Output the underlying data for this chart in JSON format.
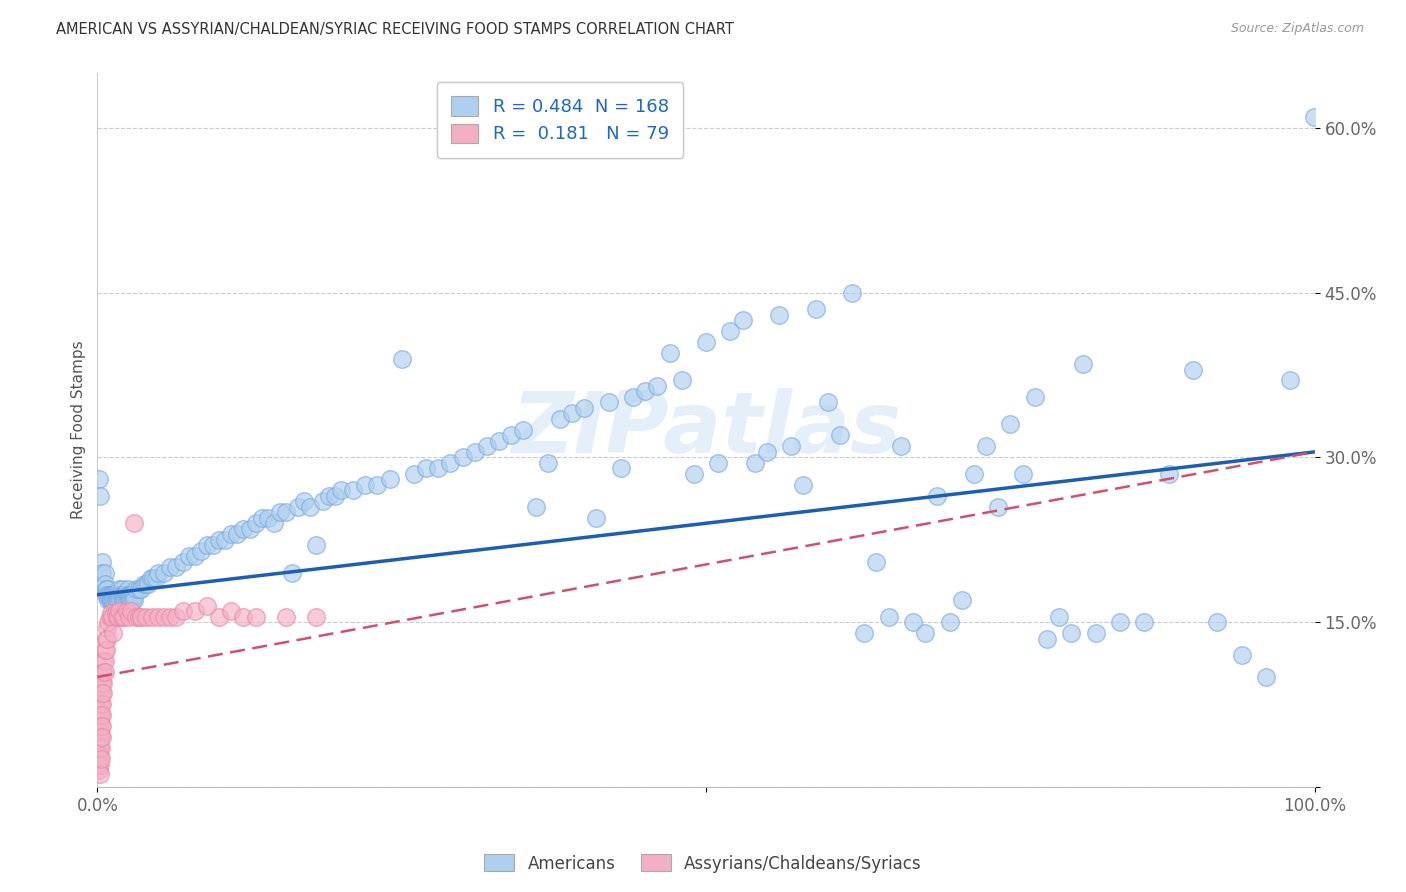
{
  "title": "AMERICAN VS ASSYRIAN/CHALDEAN/SYRIAC RECEIVING FOOD STAMPS CORRELATION CHART",
  "source": "Source: ZipAtlas.com",
  "ylabel": "Receiving Food Stamps",
  "xlim": [
    0,
    1.0
  ],
  "ylim": [
    0,
    0.65
  ],
  "watermark": "ZIPatlas",
  "legend_R_blue": "0.484",
  "legend_N_blue": "168",
  "legend_R_pink": "0.181",
  "legend_N_pink": "79",
  "blue_fill": "#aecfee",
  "pink_fill": "#f5afc5",
  "blue_edge": "#7aabdf",
  "pink_edge": "#e888a8",
  "blue_line_color": "#1a5fb4",
  "pink_line_color": "#d05070",
  "blue_scatter": [
    [
      0.001,
      0.28
    ],
    [
      0.002,
      0.265
    ],
    [
      0.004,
      0.205
    ],
    [
      0.004,
      0.195
    ],
    [
      0.006,
      0.195
    ],
    [
      0.006,
      0.185
    ],
    [
      0.007,
      0.18
    ],
    [
      0.007,
      0.175
    ],
    [
      0.008,
      0.18
    ],
    [
      0.008,
      0.175
    ],
    [
      0.009,
      0.175
    ],
    [
      0.009,
      0.17
    ],
    [
      0.01,
      0.175
    ],
    [
      0.01,
      0.17
    ],
    [
      0.011,
      0.175
    ],
    [
      0.011,
      0.17
    ],
    [
      0.012,
      0.175
    ],
    [
      0.012,
      0.17
    ],
    [
      0.013,
      0.175
    ],
    [
      0.013,
      0.17
    ],
    [
      0.014,
      0.175
    ],
    [
      0.014,
      0.17
    ],
    [
      0.015,
      0.175
    ],
    [
      0.015,
      0.17
    ],
    [
      0.016,
      0.175
    ],
    [
      0.016,
      0.17
    ],
    [
      0.017,
      0.175
    ],
    [
      0.017,
      0.17
    ],
    [
      0.018,
      0.18
    ],
    [
      0.018,
      0.175
    ],
    [
      0.019,
      0.175
    ],
    [
      0.019,
      0.17
    ],
    [
      0.02,
      0.18
    ],
    [
      0.02,
      0.175
    ],
    [
      0.021,
      0.175
    ],
    [
      0.021,
      0.17
    ],
    [
      0.022,
      0.175
    ],
    [
      0.022,
      0.17
    ],
    [
      0.023,
      0.175
    ],
    [
      0.023,
      0.17
    ],
    [
      0.024,
      0.175
    ],
    [
      0.024,
      0.17
    ],
    [
      0.025,
      0.18
    ],
    [
      0.025,
      0.175
    ],
    [
      0.026,
      0.175
    ],
    [
      0.026,
      0.17
    ],
    [
      0.027,
      0.175
    ],
    [
      0.027,
      0.17
    ],
    [
      0.028,
      0.175
    ],
    [
      0.028,
      0.17
    ],
    [
      0.029,
      0.175
    ],
    [
      0.029,
      0.17
    ],
    [
      0.03,
      0.175
    ],
    [
      0.03,
      0.17
    ],
    [
      0.032,
      0.18
    ],
    [
      0.034,
      0.18
    ],
    [
      0.036,
      0.18
    ],
    [
      0.038,
      0.185
    ],
    [
      0.04,
      0.185
    ],
    [
      0.042,
      0.185
    ],
    [
      0.044,
      0.19
    ],
    [
      0.046,
      0.19
    ],
    [
      0.048,
      0.19
    ],
    [
      0.05,
      0.195
    ],
    [
      0.055,
      0.195
    ],
    [
      0.06,
      0.2
    ],
    [
      0.065,
      0.2
    ],
    [
      0.07,
      0.205
    ],
    [
      0.075,
      0.21
    ],
    [
      0.08,
      0.21
    ],
    [
      0.085,
      0.215
    ],
    [
      0.09,
      0.22
    ],
    [
      0.095,
      0.22
    ],
    [
      0.1,
      0.225
    ],
    [
      0.105,
      0.225
    ],
    [
      0.11,
      0.23
    ],
    [
      0.115,
      0.23
    ],
    [
      0.12,
      0.235
    ],
    [
      0.125,
      0.235
    ],
    [
      0.13,
      0.24
    ],
    [
      0.135,
      0.245
    ],
    [
      0.14,
      0.245
    ],
    [
      0.145,
      0.24
    ],
    [
      0.15,
      0.25
    ],
    [
      0.155,
      0.25
    ],
    [
      0.16,
      0.195
    ],
    [
      0.165,
      0.255
    ],
    [
      0.17,
      0.26
    ],
    [
      0.175,
      0.255
    ],
    [
      0.18,
      0.22
    ],
    [
      0.185,
      0.26
    ],
    [
      0.19,
      0.265
    ],
    [
      0.195,
      0.265
    ],
    [
      0.2,
      0.27
    ],
    [
      0.21,
      0.27
    ],
    [
      0.22,
      0.275
    ],
    [
      0.23,
      0.275
    ],
    [
      0.24,
      0.28
    ],
    [
      0.25,
      0.39
    ],
    [
      0.26,
      0.285
    ],
    [
      0.27,
      0.29
    ],
    [
      0.28,
      0.29
    ],
    [
      0.29,
      0.295
    ],
    [
      0.3,
      0.3
    ],
    [
      0.31,
      0.305
    ],
    [
      0.32,
      0.31
    ],
    [
      0.33,
      0.315
    ],
    [
      0.34,
      0.32
    ],
    [
      0.35,
      0.325
    ],
    [
      0.36,
      0.255
    ],
    [
      0.37,
      0.295
    ],
    [
      0.38,
      0.335
    ],
    [
      0.39,
      0.34
    ],
    [
      0.4,
      0.345
    ],
    [
      0.41,
      0.245
    ],
    [
      0.42,
      0.35
    ],
    [
      0.43,
      0.29
    ],
    [
      0.44,
      0.355
    ],
    [
      0.45,
      0.36
    ],
    [
      0.46,
      0.365
    ],
    [
      0.47,
      0.395
    ],
    [
      0.48,
      0.37
    ],
    [
      0.49,
      0.285
    ],
    [
      0.5,
      0.405
    ],
    [
      0.51,
      0.295
    ],
    [
      0.52,
      0.415
    ],
    [
      0.53,
      0.425
    ],
    [
      0.54,
      0.295
    ],
    [
      0.55,
      0.305
    ],
    [
      0.56,
      0.43
    ],
    [
      0.57,
      0.31
    ],
    [
      0.58,
      0.275
    ],
    [
      0.59,
      0.435
    ],
    [
      0.6,
      0.35
    ],
    [
      0.61,
      0.32
    ],
    [
      0.62,
      0.45
    ],
    [
      0.63,
      0.14
    ],
    [
      0.64,
      0.205
    ],
    [
      0.65,
      0.155
    ],
    [
      0.66,
      0.31
    ],
    [
      0.67,
      0.15
    ],
    [
      0.68,
      0.14
    ],
    [
      0.69,
      0.265
    ],
    [
      0.7,
      0.15
    ],
    [
      0.71,
      0.17
    ],
    [
      0.72,
      0.285
    ],
    [
      0.73,
      0.31
    ],
    [
      0.74,
      0.255
    ],
    [
      0.75,
      0.33
    ],
    [
      0.76,
      0.285
    ],
    [
      0.77,
      0.355
    ],
    [
      0.78,
      0.135
    ],
    [
      0.79,
      0.155
    ],
    [
      0.8,
      0.14
    ],
    [
      0.81,
      0.385
    ],
    [
      0.82,
      0.14
    ],
    [
      0.84,
      0.15
    ],
    [
      0.86,
      0.15
    ],
    [
      0.88,
      0.285
    ],
    [
      0.9,
      0.38
    ],
    [
      0.92,
      0.15
    ],
    [
      0.94,
      0.12
    ],
    [
      0.96,
      0.1
    ],
    [
      0.98,
      0.37
    ],
    [
      0.999,
      0.61
    ]
  ],
  "pink_scatter": [
    [
      0.001,
      0.08
    ],
    [
      0.001,
      0.065
    ],
    [
      0.001,
      0.055
    ],
    [
      0.001,
      0.045
    ],
    [
      0.001,
      0.038
    ],
    [
      0.001,
      0.03
    ],
    [
      0.001,
      0.022
    ],
    [
      0.001,
      0.015
    ],
    [
      0.002,
      0.088
    ],
    [
      0.002,
      0.078
    ],
    [
      0.002,
      0.068
    ],
    [
      0.002,
      0.06
    ],
    [
      0.002,
      0.052
    ],
    [
      0.002,
      0.044
    ],
    [
      0.002,
      0.036
    ],
    [
      0.002,
      0.028
    ],
    [
      0.002,
      0.02
    ],
    [
      0.002,
      0.012
    ],
    [
      0.003,
      0.095
    ],
    [
      0.003,
      0.085
    ],
    [
      0.003,
      0.075
    ],
    [
      0.003,
      0.065
    ],
    [
      0.003,
      0.055
    ],
    [
      0.003,
      0.045
    ],
    [
      0.003,
      0.035
    ],
    [
      0.003,
      0.025
    ],
    [
      0.004,
      0.105
    ],
    [
      0.004,
      0.095
    ],
    [
      0.004,
      0.085
    ],
    [
      0.004,
      0.075
    ],
    [
      0.004,
      0.065
    ],
    [
      0.004,
      0.055
    ],
    [
      0.004,
      0.045
    ],
    [
      0.005,
      0.115
    ],
    [
      0.005,
      0.105
    ],
    [
      0.005,
      0.095
    ],
    [
      0.005,
      0.085
    ],
    [
      0.006,
      0.125
    ],
    [
      0.006,
      0.115
    ],
    [
      0.006,
      0.105
    ],
    [
      0.007,
      0.135
    ],
    [
      0.007,
      0.125
    ],
    [
      0.008,
      0.145
    ],
    [
      0.008,
      0.135
    ],
    [
      0.009,
      0.15
    ],
    [
      0.01,
      0.155
    ],
    [
      0.011,
      0.158
    ],
    [
      0.012,
      0.155
    ],
    [
      0.013,
      0.14
    ],
    [
      0.015,
      0.158
    ],
    [
      0.016,
      0.155
    ],
    [
      0.017,
      0.155
    ],
    [
      0.018,
      0.16
    ],
    [
      0.02,
      0.155
    ],
    [
      0.022,
      0.155
    ],
    [
      0.024,
      0.16
    ],
    [
      0.026,
      0.155
    ],
    [
      0.028,
      0.16
    ],
    [
      0.03,
      0.24
    ],
    [
      0.032,
      0.155
    ],
    [
      0.034,
      0.155
    ],
    [
      0.036,
      0.155
    ],
    [
      0.04,
      0.155
    ],
    [
      0.045,
      0.155
    ],
    [
      0.05,
      0.155
    ],
    [
      0.055,
      0.155
    ],
    [
      0.06,
      0.155
    ],
    [
      0.065,
      0.155
    ],
    [
      0.07,
      0.16
    ],
    [
      0.08,
      0.16
    ],
    [
      0.09,
      0.165
    ],
    [
      0.1,
      0.155
    ],
    [
      0.11,
      0.16
    ],
    [
      0.12,
      0.155
    ],
    [
      0.13,
      0.155
    ],
    [
      0.155,
      0.155
    ],
    [
      0.18,
      0.155
    ]
  ],
  "blue_line_x": [
    0.0,
    1.0
  ],
  "blue_line_y": [
    0.175,
    0.305
  ],
  "pink_line_x": [
    0.0,
    1.0
  ],
  "pink_line_y": [
    0.1,
    0.305
  ]
}
